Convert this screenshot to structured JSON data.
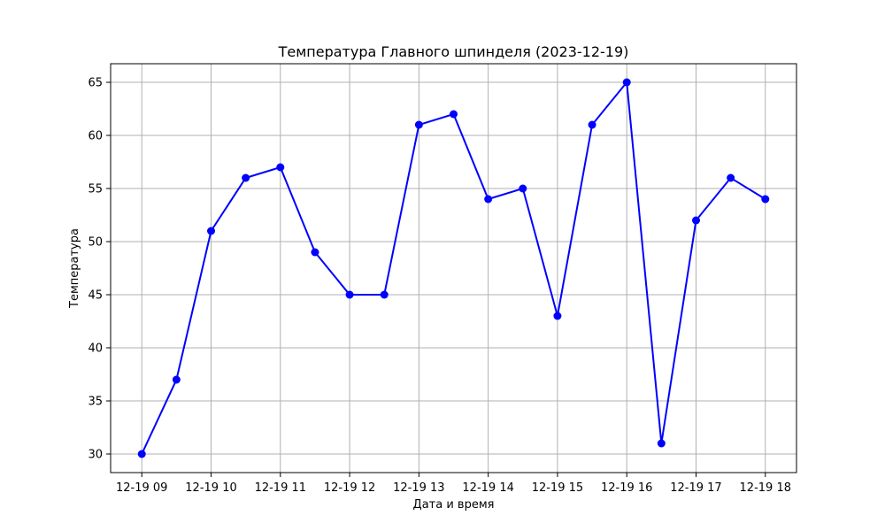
{
  "chart_data": {
    "type": "line",
    "title": "Температура Главного шпинделя (2023-12-19)",
    "xlabel": "Дата и время",
    "ylabel": "Температура",
    "x": [
      "2023-12-19 09:00",
      "2023-12-19 09:30",
      "2023-12-19 10:00",
      "2023-12-19 10:30",
      "2023-12-19 11:00",
      "2023-12-19 11:30",
      "2023-12-19 12:00",
      "2023-12-19 12:30",
      "2023-12-19 13:00",
      "2023-12-19 13:30",
      "2023-12-19 14:00",
      "2023-12-19 14:30",
      "2023-12-19 15:00",
      "2023-12-19 15:30",
      "2023-12-19 16:00",
      "2023-12-19 16:30",
      "2023-12-19 17:00",
      "2023-12-19 17:30",
      "2023-12-19 18:00"
    ],
    "series": [
      {
        "values": [
          30,
          37,
          51,
          56,
          57,
          49,
          45,
          45,
          61,
          62,
          54,
          55,
          43,
          61,
          65,
          31,
          52,
          56,
          54
        ],
        "color": "#0000ff",
        "marker": "circle"
      }
    ],
    "x_ticks": [
      "12-19 09",
      "12-19 10",
      "12-19 11",
      "12-19 12",
      "12-19 13",
      "12-19 14",
      "12-19 15",
      "12-19 16",
      "12-19 17",
      "12-19 18"
    ],
    "y_ticks": [
      30,
      35,
      40,
      45,
      50,
      55,
      60,
      65
    ],
    "xlim": [
      "2023-12-19 08:33",
      "2023-12-19 18:27"
    ],
    "ylim": [
      28.25,
      66.75
    ],
    "grid": true
  }
}
